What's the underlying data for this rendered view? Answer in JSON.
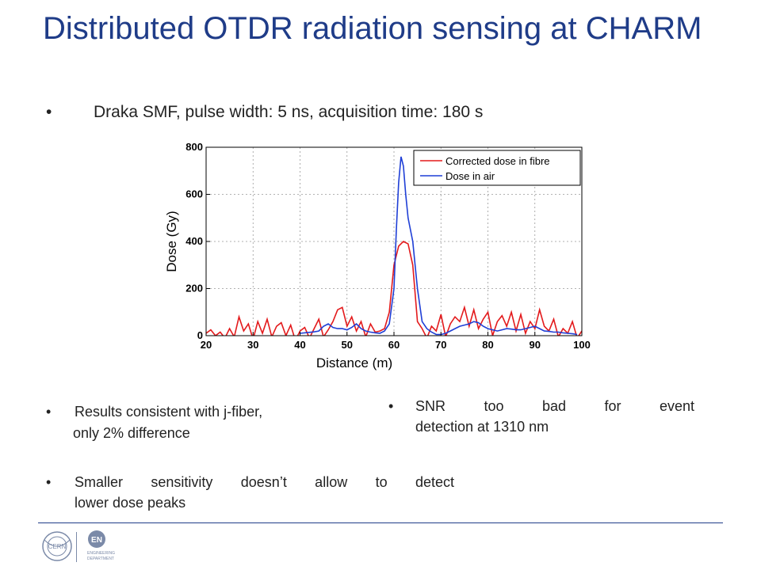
{
  "slide": {
    "title": "Distributed OTDR radiation sensing at CHARM",
    "subtitle": "Draka SMF, pulse width: 5 ns, acquisition time: 180 s",
    "bullet_symbol": "•",
    "bullets": [
      {
        "line1": "Results consistent with j-fiber,",
        "line2": "only 2% difference"
      },
      {
        "line1": "SNR too bad for event",
        "line2": "detection at 1310 nm"
      },
      {
        "line1": "Smaller sensitivity doesn’t allow to detect",
        "line2": "lower dose peaks"
      }
    ]
  },
  "logos": {
    "cern_text": "CERN",
    "en_text": "EN",
    "en_subtitle_1": "ENGINEERING",
    "en_subtitle_2": "DEPARTMENT"
  },
  "chart_data": {
    "type": "line",
    "xlabel": "Distance (m)",
    "ylabel": "Dose (Gy)",
    "xlim": [
      20,
      100
    ],
    "ylim": [
      0,
      800
    ],
    "xticks": [
      20,
      30,
      40,
      50,
      60,
      70,
      80,
      90,
      100
    ],
    "yticks": [
      0,
      200,
      400,
      600,
      800
    ],
    "grid": true,
    "legend_position": "top-right",
    "series": [
      {
        "name": "Corrected dose in fibre",
        "color": "#e31a1c",
        "x": [
          20,
          21,
          22,
          23,
          24,
          25,
          26,
          27,
          28,
          29,
          30,
          31,
          32,
          33,
          34,
          35,
          36,
          37,
          38,
          39,
          40,
          41,
          42,
          43,
          44,
          45,
          46,
          47,
          48,
          49,
          50,
          51,
          52,
          53,
          54,
          55,
          56,
          57,
          58,
          59,
          60,
          61,
          62,
          63,
          64,
          65,
          66,
          67,
          68,
          69,
          70,
          71,
          72,
          73,
          74,
          75,
          76,
          77,
          78,
          79,
          80,
          81,
          82,
          83,
          84,
          85,
          86,
          87,
          88,
          89,
          90,
          91,
          92,
          93,
          94,
          95,
          96,
          97,
          98,
          99,
          100
        ],
        "y": [
          10,
          25,
          0,
          15,
          -10,
          30,
          -5,
          80,
          20,
          50,
          -15,
          60,
          10,
          70,
          -5,
          40,
          55,
          0,
          45,
          -20,
          20,
          35,
          -10,
          30,
          70,
          -5,
          25,
          60,
          110,
          120,
          40,
          80,
          20,
          60,
          -5,
          50,
          15,
          20,
          30,
          100,
          300,
          380,
          400,
          390,
          300,
          60,
          30,
          -10,
          40,
          20,
          90,
          -5,
          50,
          80,
          60,
          120,
          40,
          110,
          30,
          70,
          100,
          0,
          60,
          85,
          40,
          100,
          20,
          90,
          10,
          60,
          30,
          110,
          40,
          20,
          70,
          -5,
          30,
          10,
          60,
          -10,
          20
        ]
      },
      {
        "name": "Dose in air",
        "color": "#1f3fd6",
        "x": [
          20,
          21,
          22,
          23,
          24,
          25,
          26,
          27,
          28,
          29,
          30,
          31,
          32,
          33,
          34,
          35,
          36,
          37,
          38,
          39,
          40,
          41,
          42,
          43,
          44,
          45,
          46,
          47,
          48,
          49,
          50,
          51,
          52,
          53,
          54,
          55,
          56,
          57,
          58,
          59,
          60,
          60.5,
          61,
          61.5,
          62,
          62.5,
          63,
          64,
          65,
          66,
          67,
          68,
          69,
          70,
          71,
          72,
          73,
          74,
          75,
          76,
          77,
          78,
          79,
          80,
          81,
          82,
          83,
          84,
          85,
          86,
          87,
          88,
          89,
          90,
          91,
          92,
          93,
          94,
          95,
          96,
          97,
          98,
          99,
          100
        ],
        "y": [
          null,
          null,
          null,
          null,
          null,
          null,
          null,
          null,
          null,
          null,
          null,
          null,
          null,
          null,
          null,
          null,
          null,
          null,
          null,
          null,
          10,
          12,
          14,
          16,
          20,
          40,
          50,
          35,
          30,
          30,
          25,
          35,
          50,
          30,
          20,
          15,
          12,
          10,
          20,
          50,
          200,
          450,
          650,
          760,
          720,
          600,
          500,
          400,
          200,
          60,
          30,
          15,
          5,
          5,
          10,
          20,
          30,
          40,
          45,
          50,
          60,
          55,
          40,
          30,
          25,
          20,
          25,
          30,
          28,
          25,
          25,
          30,
          35,
          40,
          30,
          20,
          18,
          15,
          15,
          12,
          10,
          8,
          5,
          null
        ]
      }
    ]
  }
}
